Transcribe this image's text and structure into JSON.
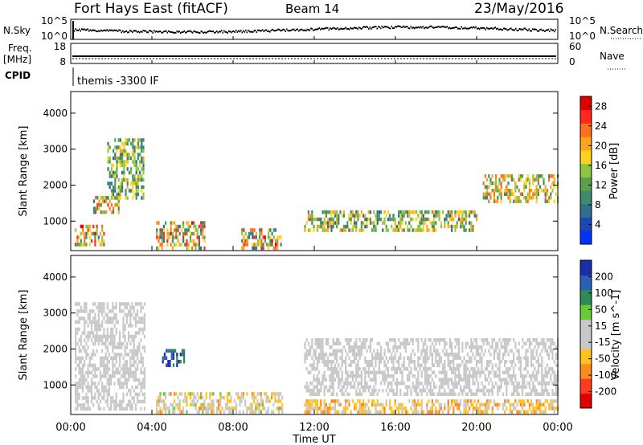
{
  "header": {
    "title": "Fort Hays East (fitACF)",
    "beam": "Beam 14",
    "date": "23/May/2016"
  },
  "nsky_panel": {
    "left_label": "N.Sky",
    "left_ticks": [
      "10^5",
      "10^0"
    ],
    "right_label": "N.Search",
    "right_ticks": [
      "10^5",
      "10^0"
    ]
  },
  "freq_panel": {
    "left_label_line1": "Freq.",
    "left_label_line2": "[MHz]",
    "left_ticks": [
      "18",
      "8"
    ],
    "right_label": "Nave",
    "right_ticks": [
      "60",
      "0"
    ]
  },
  "cpid_panel": {
    "label": "CPID",
    "value": "themis -3300 IF"
  },
  "x_axis": {
    "ticks": [
      "00:00",
      "04:00",
      "08:00",
      "12:00",
      "16:00",
      "20:00",
      "00:00"
    ],
    "label": "Time UT"
  },
  "colors": {
    "power": [
      "#0033ff",
      "#1b47b8",
      "#2f6e91",
      "#3e8a6a",
      "#5aa04a",
      "#8cc63f",
      "#ffd21f",
      "#ffa41f",
      "#ff6f1f",
      "#ff2a1a",
      "#e00000"
    ],
    "velocity": [
      "#e00000",
      "#ff3b1e",
      "#ff8a1e",
      "#ffc21e",
      "#c8c8c8",
      "#c8c8c8",
      "#66cc33",
      "#2e8b57",
      "#2a5fb5",
      "#1a2ea8"
    ]
  },
  "chart_data": [
    {
      "type": "heatmap",
      "name": "power",
      "ylabel": "Slant Range [km]",
      "yticks": [
        "1000",
        "2000",
        "3000",
        "4000"
      ],
      "ylim": [
        180,
        4600
      ],
      "xlim_hours": [
        0,
        24
      ],
      "colorbar": {
        "label": "Power [dB]",
        "ticks": [
          "4",
          "8",
          "12",
          "16",
          "20",
          "24",
          "28"
        ],
        "range": [
          0,
          30
        ]
      },
      "features": [
        {
          "t0": 0.2,
          "t1": 1.6,
          "r0": 300,
          "r1": 900,
          "value_range": [
            6,
            30
          ]
        },
        {
          "t0": 1.1,
          "t1": 2.4,
          "r0": 1200,
          "r1": 1700,
          "value_range": [
            8,
            26
          ]
        },
        {
          "t0": 1.8,
          "t1": 3.6,
          "r0": 1600,
          "r1": 3300,
          "value_range": [
            6,
            20
          ]
        },
        {
          "t0": 4.2,
          "t1": 6.6,
          "r0": 250,
          "r1": 1000,
          "value_range": [
            6,
            28
          ]
        },
        {
          "t0": 8.4,
          "t1": 10.4,
          "r0": 250,
          "r1": 800,
          "value_range": [
            6,
            28
          ]
        },
        {
          "t0": 11.5,
          "t1": 20.0,
          "r0": 700,
          "r1": 1300,
          "value_range": [
            6,
            22
          ]
        },
        {
          "t0": 20.3,
          "t1": 24.0,
          "r0": 1500,
          "r1": 2300,
          "value_range": [
            8,
            24
          ]
        }
      ]
    },
    {
      "type": "heatmap",
      "name": "velocity",
      "ylabel": "Slant Range [km]",
      "yticks": [
        "1000",
        "2000",
        "3000",
        "4000"
      ],
      "ylim": [
        180,
        4600
      ],
      "xlim_hours": [
        0,
        24
      ],
      "colorbar": {
        "label": "Velocity [m s^-1]",
        "ticks": [
          "200",
          "100",
          "50",
          "15",
          "-15",
          "-50",
          "-100",
          "-200"
        ],
        "range": [
          -250,
          250
        ]
      },
      "features": [
        {
          "t0": 0.2,
          "t1": 3.6,
          "r0": 300,
          "r1": 3300,
          "value_range": [
            -15,
            15
          ]
        },
        {
          "t0": 4.5,
          "t1": 5.6,
          "r0": 1500,
          "r1": 2000,
          "value_range": [
            100,
            250
          ]
        },
        {
          "t0": 4.2,
          "t1": 10.4,
          "r0": 250,
          "r1": 800,
          "value_range": [
            -120,
            60
          ]
        },
        {
          "t0": 11.5,
          "t1": 24.0,
          "r0": 250,
          "r1": 600,
          "value_range": [
            -120,
            -20
          ]
        },
        {
          "t0": 11.5,
          "t1": 24.0,
          "r0": 700,
          "r1": 2300,
          "value_range": [
            -15,
            15
          ]
        }
      ]
    }
  ]
}
